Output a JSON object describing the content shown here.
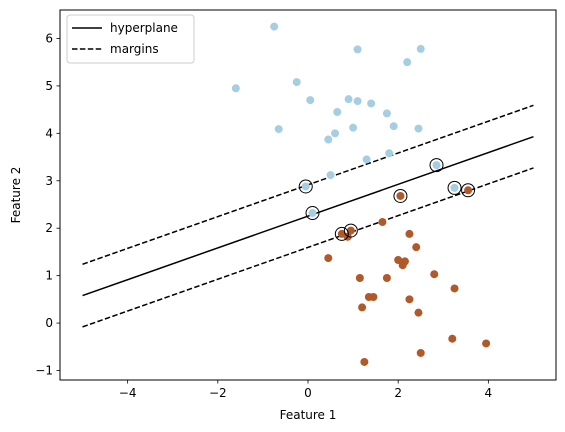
{
  "chart_data": {
    "type": "scatter",
    "title": "",
    "xlabel": "Feature 1",
    "ylabel": "Feature 2",
    "xlim": [
      -5.5,
      5.5
    ],
    "ylim": [
      -1.2,
      6.6
    ],
    "xticks": [
      -4,
      -2,
      0,
      2,
      4
    ],
    "yticks": [
      -1,
      0,
      1,
      2,
      3,
      4,
      5,
      6
    ],
    "xtick_labels": [
      "−4",
      "−2",
      "0",
      "2",
      "4"
    ],
    "ytick_labels": [
      "−1",
      "0",
      "1",
      "2",
      "3",
      "4",
      "5",
      "6"
    ],
    "grid": false,
    "legend": {
      "position": "top-left",
      "entries": [
        {
          "label": "hyperplane",
          "style": "solid"
        },
        {
          "label": "margins",
          "style": "dashed"
        }
      ]
    },
    "colors": {
      "class_0": "#a6cee3",
      "class_1": "#b15928",
      "line": "#000000"
    },
    "series": [
      {
        "color": "#a6cee3",
        "points": [
          [
            -0.75,
            6.25
          ],
          [
            1.1,
            5.77
          ],
          [
            2.5,
            5.78
          ],
          [
            2.2,
            5.5
          ],
          [
            -1.6,
            4.95
          ],
          [
            -0.25,
            5.08
          ],
          [
            0.05,
            4.7
          ],
          [
            0.9,
            4.72
          ],
          [
            1.1,
            4.68
          ],
          [
            1.4,
            4.63
          ],
          [
            1.75,
            4.42
          ],
          [
            0.65,
            4.45
          ],
          [
            -0.65,
            4.09
          ],
          [
            0.6,
            4.0
          ],
          [
            0.45,
            3.87
          ],
          [
            1.0,
            4.12
          ],
          [
            1.9,
            4.15
          ],
          [
            2.45,
            4.1
          ],
          [
            1.3,
            3.45
          ],
          [
            1.8,
            3.58
          ],
          [
            0.5,
            3.12
          ],
          [
            -0.05,
            2.88
          ],
          [
            0.1,
            2.32
          ],
          [
            2.85,
            3.33
          ],
          [
            3.25,
            2.85
          ]
        ]
      },
      {
        "color": "#b15928",
        "points": [
          [
            2.05,
            2.68
          ],
          [
            3.55,
            2.8
          ],
          [
            0.75,
            1.88
          ],
          [
            0.95,
            1.95
          ],
          [
            0.88,
            1.82
          ],
          [
            1.65,
            2.13
          ],
          [
            2.25,
            1.88
          ],
          [
            2.4,
            1.6
          ],
          [
            0.45,
            1.37
          ],
          [
            2.0,
            1.33
          ],
          [
            2.15,
            1.3
          ],
          [
            2.1,
            1.22
          ],
          [
            1.15,
            0.95
          ],
          [
            1.75,
            0.95
          ],
          [
            2.8,
            1.03
          ],
          [
            3.25,
            0.73
          ],
          [
            1.35,
            0.55
          ],
          [
            1.45,
            0.55
          ],
          [
            2.25,
            0.5
          ],
          [
            1.2,
            0.33
          ],
          [
            2.45,
            0.22
          ],
          [
            3.2,
            -0.33
          ],
          [
            3.95,
            -0.43
          ],
          [
            2.5,
            -0.63
          ],
          [
            1.25,
            -0.82
          ]
        ]
      }
    ],
    "support_vectors": [
      [
        -0.05,
        2.88
      ],
      [
        0.1,
        2.32
      ],
      [
        2.85,
        3.33
      ],
      [
        3.25,
        2.85
      ],
      [
        2.05,
        2.68
      ],
      [
        3.55,
        2.8
      ],
      [
        0.75,
        1.88
      ],
      [
        0.95,
        1.95
      ]
    ],
    "lines": [
      {
        "label": "hyperplane",
        "style": "solid",
        "points": [
          [
            -5,
            0.58
          ],
          [
            5,
            3.93
          ]
        ]
      },
      {
        "label": "margins",
        "style": "dashed",
        "points": [
          [
            -5,
            1.24
          ],
          [
            5,
            4.59
          ]
        ]
      },
      {
        "label": "margins",
        "style": "dashed",
        "points": [
          [
            -5,
            -0.08
          ],
          [
            5,
            3.27
          ]
        ]
      }
    ]
  }
}
